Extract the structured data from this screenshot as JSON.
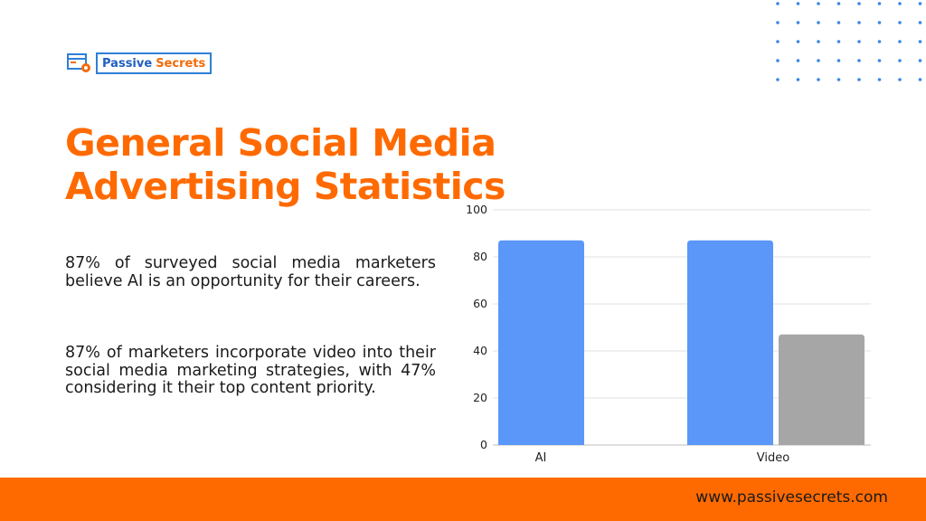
{
  "brand": {
    "name_part1": "Passive",
    "name_part2": "Secrets",
    "colors": {
      "orange": "#ff6a00",
      "blue": "#1f5fbf"
    }
  },
  "slide": {
    "title_line1": "General Social Media",
    "title_line2": "Advertising Statistics",
    "paragraphs": [
      "87% of surveyed social media marketers believe AI is an opportunity for their careers.",
      "87% of marketers incorporate video into their social media marketing strategies, with 47% considering it their top content priority."
    ]
  },
  "footer": {
    "url": "www.passivesecrets.com"
  },
  "chart_data": {
    "type": "bar",
    "categories": [
      "AI",
      "Video"
    ],
    "series": [
      {
        "values": [
          87,
          87
        ],
        "color": "#5a97f8"
      },
      {
        "values": [
          null,
          47
        ],
        "color": "#a6a6a6"
      }
    ],
    "yticks": [
      0,
      20,
      40,
      60,
      80,
      100
    ],
    "ylim": [
      0,
      100
    ],
    "grid": true
  }
}
